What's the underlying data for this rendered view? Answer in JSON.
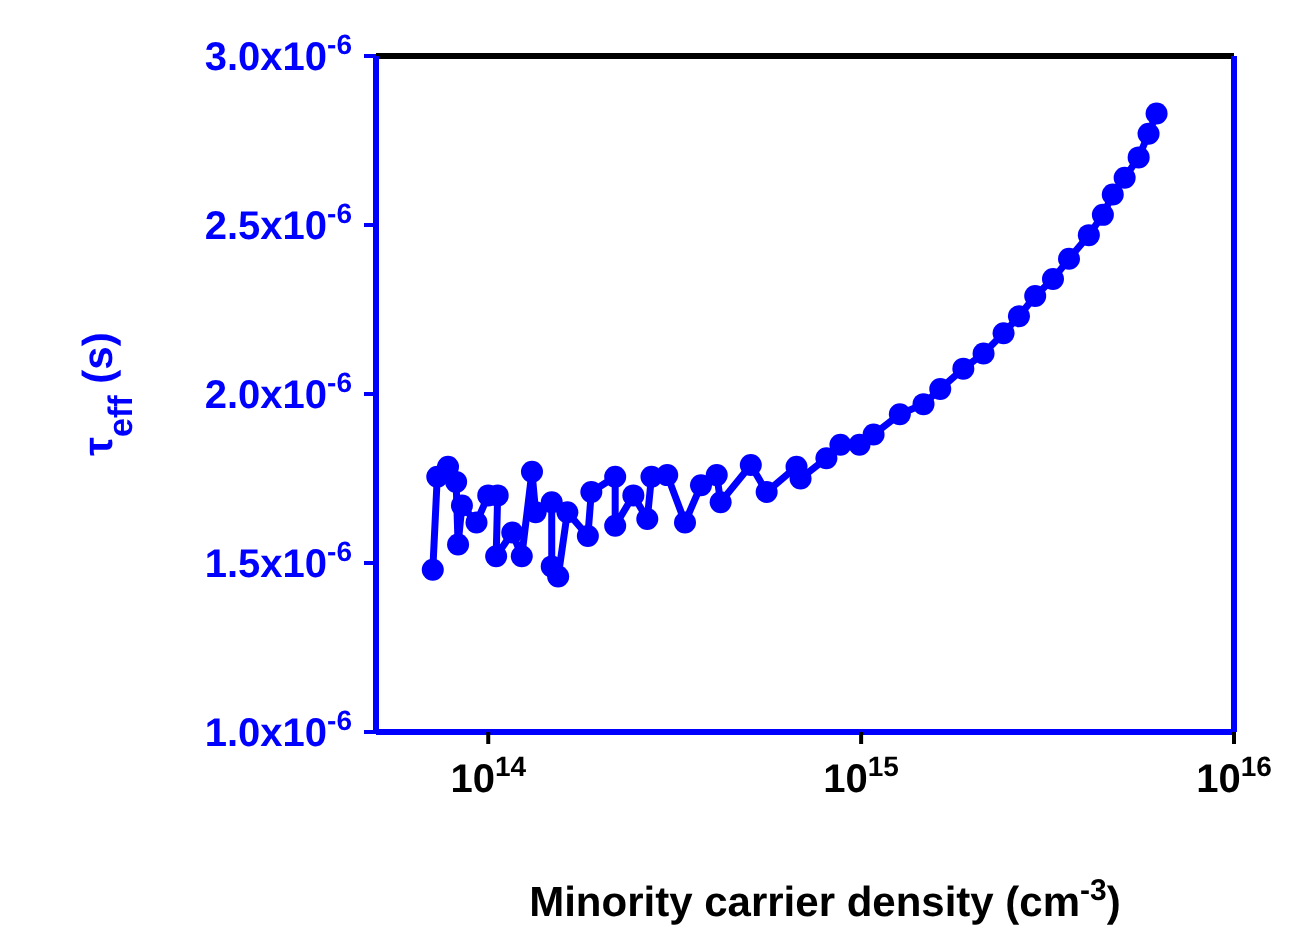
{
  "chart_data": {
    "type": "line",
    "xlabel": "Minority carrier density (cm$^{-3}$)",
    "ylabel": "τ$_{eff}$ (s)",
    "log": "x",
    "marker": "circle",
    "line_style": "solid",
    "grid": false,
    "legend": false,
    "x": [
      71000000000000.0,
      73000000000000.0,
      78000000000000.0,
      82000000000000.0,
      83000000000000.0,
      85000000000000.0,
      93000000000000.0,
      100000000000000.0,
      106000000000000.0,
      105000000000000.0,
      116000000000000.0,
      123000000000000.0,
      131000000000000.0,
      134000000000000.0,
      148000000000000.0,
      148000000000000.0,
      154000000000000.0,
      163000000000000.0,
      185000000000000.0,
      189000000000000.0,
      219000000000000.0,
      219000000000000.0,
      245000000000000.0,
      267000000000000.0,
      274000000000000.0,
      302000000000000.0,
      337000000000000.0,
      372000000000000.0,
      410000000000000.0,
      420000000000000.0,
      506000000000000.0,
      558000000000000.0,
      671000000000000.0,
      688000000000000.0,
      807000000000000.0,
      880000000000000.0,
      990000000000000.0,
      1080000000000000.0,
      1270000000000000.0,
      1470000000000000.0,
      1630000000000000.0,
      1880000000000000.0,
      2130000000000000.0,
      2410000000000000.0,
      2650000000000000.0,
      2930000000000000.0,
      3270000000000000.0,
      3610000000000000.0,
      4080000000000000.0,
      4450000000000000.0,
      4730000000000000.0,
      5090000000000000.0,
      5550000000000000.0,
      5900000000000000.0,
      6200000000000000.0
    ],
    "series": [
      {
        "color": "#0000ff",
        "values": [
          1.48e-06,
          1.755e-06,
          1.785e-06,
          1.74e-06,
          1.555e-06,
          1.67e-06,
          1.62e-06,
          1.7e-06,
          1.7e-06,
          1.52e-06,
          1.59e-06,
          1.52e-06,
          1.77e-06,
          1.65e-06,
          1.68e-06,
          1.49e-06,
          1.46e-06,
          1.65e-06,
          1.58e-06,
          1.71e-06,
          1.755e-06,
          1.61e-06,
          1.7e-06,
          1.63e-06,
          1.755e-06,
          1.76e-06,
          1.62e-06,
          1.73e-06,
          1.76e-06,
          1.68e-06,
          1.79e-06,
          1.71e-06,
          1.785e-06,
          1.75e-06,
          1.81e-06,
          1.85e-06,
          1.85e-06,
          1.88e-06,
          1.94e-06,
          1.97e-06,
          2.015e-06,
          2.075e-06,
          2.12e-06,
          2.18e-06,
          2.23e-06,
          2.29e-06,
          2.34e-06,
          2.4e-06,
          2.47e-06,
          2.53e-06,
          2.59e-06,
          2.64e-06,
          2.7e-06,
          2.77e-06,
          2.83e-06
        ]
      }
    ],
    "xlim": [
      50000000000000.0,
      1e+16
    ],
    "xticks": [
      {
        "value": 100000000000000.0,
        "label": "10$^{14}$"
      },
      {
        "value": 1000000000000000.0,
        "label": "10$^{15}$"
      },
      {
        "value": 1e+16,
        "label": "10$^{16}$"
      }
    ],
    "ylim": [
      1e-06,
      3e-06
    ],
    "yticks": [
      {
        "value": 1e-06,
        "label": "1.0x10$^{-6}$"
      },
      {
        "value": 1.5e-06,
        "label": "1.5x10$^{-6}$"
      },
      {
        "value": 2e-06,
        "label": "2.0x10$^{-6}$"
      },
      {
        "value": 2.5e-06,
        "label": "2.5x10$^{-6}$"
      },
      {
        "value": 3e-06,
        "label": "3.0x10$^{-6}$"
      }
    ]
  }
}
